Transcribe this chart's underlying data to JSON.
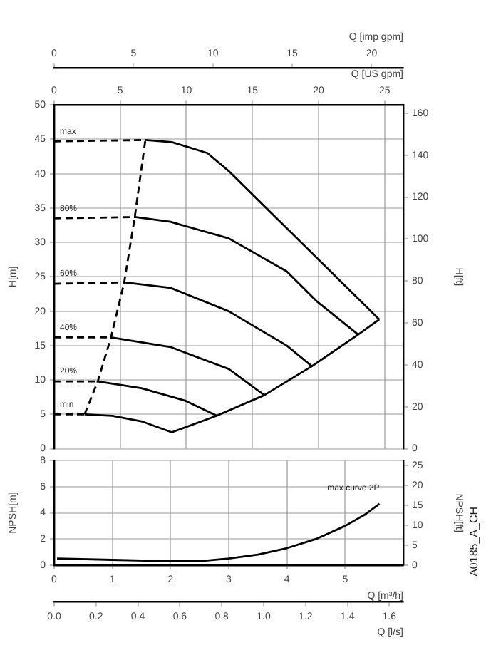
{
  "chart_data": [
    {
      "type": "line",
      "xlabel": "Q [US gpm]",
      "ylabel": "H[m]",
      "y2label": "H[ft]",
      "x2label": "Q [imp gpm]",
      "xlim": [
        0,
        26.42
      ],
      "xticks": [
        0,
        5,
        10,
        15,
        20,
        25
      ],
      "ylim": [
        0,
        50
      ],
      "yticks": [
        0,
        5,
        10,
        15,
        20,
        25,
        30,
        35,
        40,
        45,
        50
      ],
      "y2lim": [
        0,
        164
      ],
      "y2ticks": [
        0,
        20,
        40,
        60,
        80,
        100,
        120,
        140,
        160
      ],
      "x2lim": [
        0,
        22
      ],
      "x2ticks": [
        0,
        5,
        10,
        15,
        20
      ],
      "grid": true,
      "legend": false,
      "marker": "none",
      "series": [
        {
          "color": "#000000",
          "line_style": "dashed",
          "x": [
            0,
            6.9
          ],
          "values": [
            44.7,
            44.9
          ]
        },
        {
          "color": "#000000",
          "line_style": "solid",
          "x": [
            6.9,
            8.9,
            11.6,
            13.2,
            24.6
          ],
          "values": [
            44.9,
            44.6,
            43.0,
            40.4,
            18.8
          ]
        },
        {
          "color": "#000000",
          "line_style": "dashed",
          "x": [
            0,
            6.1
          ],
          "values": [
            33.5,
            33.7
          ]
        },
        {
          "color": "#000000",
          "line_style": "solid",
          "x": [
            6.1,
            8.8,
            13.2,
            17.6,
            19.9,
            23.0
          ],
          "values": [
            33.7,
            33.0,
            30.6,
            25.8,
            21.4,
            16.6
          ]
        },
        {
          "color": "#000000",
          "line_style": "dashed",
          "x": [
            0,
            5.3
          ],
          "values": [
            24.0,
            24.2
          ]
        },
        {
          "color": "#000000",
          "line_style": "solid",
          "x": [
            5.3,
            8.8,
            13.2,
            17.6,
            19.5
          ],
          "values": [
            24.2,
            23.4,
            20.0,
            15.0,
            12.0
          ]
        },
        {
          "color": "#000000",
          "line_style": "dashed",
          "x": [
            0,
            4.3
          ],
          "values": [
            16.2,
            16.2
          ]
        },
        {
          "color": "#000000",
          "line_style": "solid",
          "x": [
            4.3,
            8.8,
            13.2,
            15.9
          ],
          "values": [
            16.2,
            14.8,
            11.6,
            7.8
          ]
        },
        {
          "color": "#000000",
          "line_style": "dashed",
          "x": [
            0,
            3.3
          ],
          "values": [
            9.8,
            9.8
          ]
        },
        {
          "color": "#000000",
          "line_style": "solid",
          "x": [
            3.3,
            6.6,
            9.9,
            12.3
          ],
          "values": [
            9.8,
            8.8,
            7.0,
            4.8
          ]
        },
        {
          "color": "#000000",
          "line_style": "dashed",
          "x": [
            0,
            2.3
          ],
          "values": [
            5.0,
            5.0
          ]
        },
        {
          "color": "#000000",
          "line_style": "solid",
          "x": [
            2.3,
            4.4,
            6.6,
            8.9
          ],
          "values": [
            5.0,
            4.8,
            4.0,
            2.4
          ]
        },
        {
          "color": "#000000",
          "line_style": "solid",
          "x": [
            8.9,
            12.3,
            15.9,
            19.5,
            23.0,
            24.6
          ],
          "values": [
            2.4,
            4.8,
            7.8,
            12.0,
            16.6,
            18.8
          ]
        },
        {
          "color": "#000000",
          "line_style": "dashed",
          "x": [
            2.3,
            3.3,
            4.3,
            5.3,
            6.1,
            6.9
          ],
          "values": [
            5.0,
            9.8,
            16.2,
            24.2,
            33.7,
            44.9
          ]
        }
      ],
      "annotations": [
        "max",
        "80%",
        "60%",
        "40%",
        "20%",
        "min"
      ]
    },
    {
      "type": "line",
      "xlabel": "Q [m³/h]",
      "ylabel": "NPSH[m]",
      "y2label": "NPSH[ft]",
      "x2label": "Q [l/s]",
      "xlim": [
        0,
        6
      ],
      "xticks": [
        0,
        1,
        2,
        3,
        4,
        5
      ],
      "ylim": [
        0,
        8
      ],
      "yticks": [
        0,
        2,
        4,
        6,
        8
      ],
      "y2lim": [
        0,
        26.25
      ],
      "y2ticks": [
        0,
        5,
        10,
        15,
        20,
        25
      ],
      "x2lim": [
        0,
        1.667
      ],
      "x2ticks": [
        {
          "value": 0,
          "label": "0.0"
        },
        0.2,
        0.4,
        0.6,
        0.8,
        {
          "value": 1,
          "label": "1.0"
        },
        1.2,
        1.4,
        1.6
      ],
      "grid": true,
      "legend": false,
      "marker": "none",
      "series": [
        {
          "color": "#000000",
          "line_style": "solid",
          "x": [
            0.05,
            1,
            2,
            2.5,
            3,
            3.5,
            4,
            4.5,
            5,
            5.35,
            5.59
          ],
          "values": [
            0.5,
            0.4,
            0.3,
            0.3,
            0.5,
            0.8,
            1.3,
            2.0,
            3.0,
            3.9,
            4.7
          ]
        }
      ],
      "annotations": [
        "max curve 2P",
        "A0185_A_CH"
      ]
    }
  ]
}
